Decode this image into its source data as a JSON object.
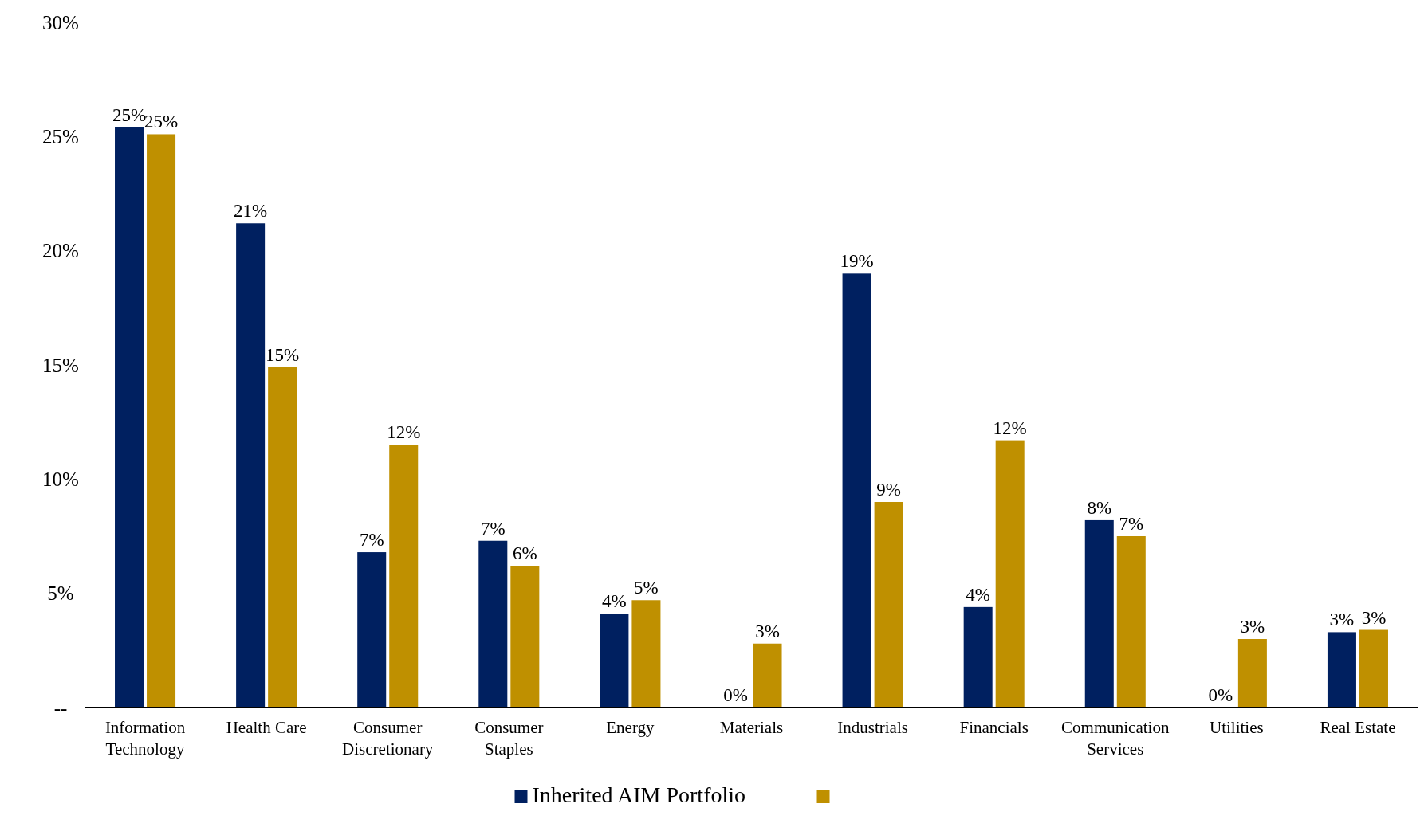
{
  "chart_data": {
    "type": "bar",
    "categories": [
      "Information Technology",
      "Health Care",
      "Consumer Discretionary",
      "Consumer Staples",
      "Energy",
      "Materials",
      "Industrials",
      "Financials",
      "Communication Services",
      "Utilities",
      "Real Estate"
    ],
    "series": [
      {
        "name": "Inherited AIM Portfolio",
        "color": "#002060",
        "values": [
          25.4,
          21.2,
          6.8,
          7.3,
          4.1,
          0,
          19.0,
          4.4,
          8.2,
          0,
          3.3
        ],
        "value_labels": [
          "25%",
          "21%",
          "7%",
          "7%",
          "4%",
          "0%",
          "19%",
          "4%",
          "8%",
          "0%",
          "3%"
        ]
      },
      {
        "color": "#bf9000",
        "values": [
          25.1,
          14.9,
          11.5,
          6.2,
          4.7,
          2.8,
          9.0,
          11.7,
          7.5,
          3.0,
          3.4
        ],
        "value_labels": [
          "25%",
          "15%",
          "12%",
          "6%",
          "5%",
          "3%",
          "9%",
          "12%",
          "7%",
          "3%",
          "3%"
        ]
      }
    ],
    "ylim": [
      0,
      30
    ],
    "yticks": [
      {
        "value": 0,
        "label": "--"
      },
      {
        "value": 5,
        "label": "5%"
      },
      {
        "value": 10,
        "label": "10%"
      },
      {
        "value": 15,
        "label": "15%"
      },
      {
        "value": 20,
        "label": "20%"
      },
      {
        "value": 25,
        "label": "25%"
      },
      {
        "value": 30,
        "label": "30%"
      }
    ],
    "grid": false,
    "legend": "bottom"
  }
}
